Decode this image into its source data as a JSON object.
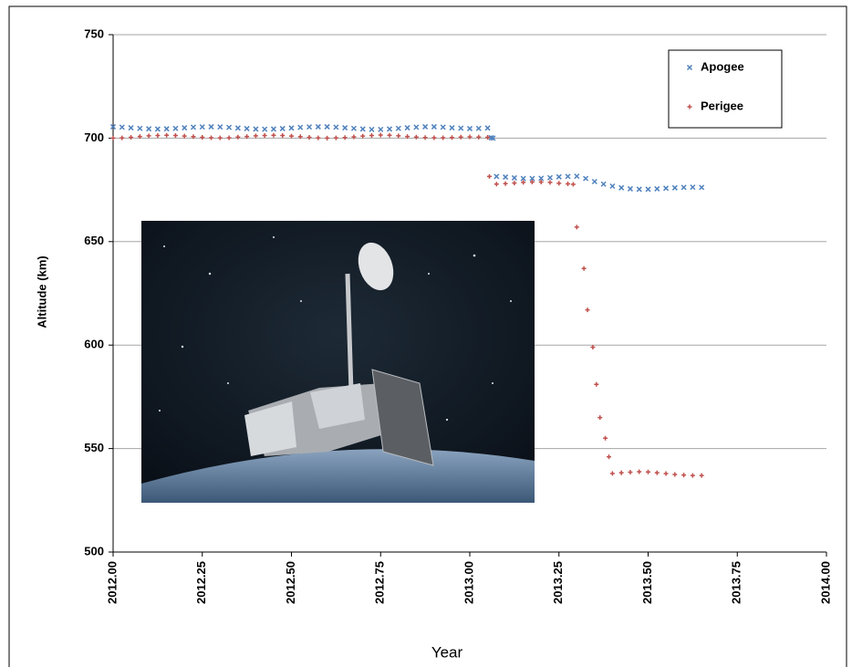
{
  "chart_data": {
    "type": "scatter",
    "x_label": "Year",
    "y_label": "Altitude  (km)",
    "xlim": [
      2012,
      2014
    ],
    "xticks": [
      {
        "value": 2012,
        "label": "2012.00"
      },
      {
        "value": 2012.25,
        "label": "2012.25"
      },
      {
        "value": 2012.5,
        "label": "2012.50"
      },
      {
        "value": 2012.75,
        "label": "2012.75"
      },
      {
        "value": 2013,
        "label": "2013.00"
      },
      {
        "value": 2013.25,
        "label": "2013.25"
      },
      {
        "value": 2013.5,
        "label": "2013.50"
      },
      {
        "value": 2013.75,
        "label": "2013.75"
      },
      {
        "value": 2014,
        "label": "2014.00"
      }
    ],
    "ylim": [
      500,
      750
    ],
    "yticks": [
      500,
      550,
      600,
      650,
      700,
      750
    ],
    "grid": true,
    "legend": "upper right",
    "series": [
      {
        "name": "Apogee",
        "color": "#4f81bd",
        "marker": "x",
        "x": [
          2012.0,
          2012.025,
          2012.05,
          2012.075,
          2012.1,
          2012.125,
          2012.15,
          2012.175,
          2012.2,
          2012.225,
          2012.25,
          2012.275,
          2012.3,
          2012.325,
          2012.35,
          2012.375,
          2012.4,
          2012.425,
          2012.45,
          2012.475,
          2012.5,
          2012.525,
          2012.55,
          2012.575,
          2012.6,
          2012.625,
          2012.65,
          2012.675,
          2012.7,
          2012.725,
          2012.75,
          2012.775,
          2012.8,
          2012.825,
          2012.85,
          2012.875,
          2012.9,
          2012.925,
          2012.95,
          2012.975,
          2013.0,
          2013.025,
          2013.05,
          2013.06,
          2013.065,
          2013.075,
          2013.1,
          2013.125,
          2013.15,
          2013.175,
          2013.2,
          2013.225,
          2013.25,
          2013.275,
          2013.3,
          2013.325,
          2013.35,
          2013.375,
          2013.4,
          2013.425,
          2013.45,
          2013.475,
          2013.5,
          2013.525,
          2013.55,
          2013.575,
          2013.6,
          2013.625,
          2013.65
        ],
        "values": [
          705.5,
          705.3,
          705.0,
          704.7,
          704.5,
          704.4,
          704.5,
          704.7,
          705.0,
          705.3,
          705.4,
          705.5,
          705.4,
          705.2,
          704.9,
          704.6,
          704.4,
          704.3,
          704.4,
          704.6,
          704.9,
          705.2,
          705.4,
          705.5,
          705.5,
          705.3,
          705.0,
          704.7,
          704.4,
          704.2,
          704.2,
          704.4,
          704.7,
          705.0,
          705.3,
          705.5,
          705.5,
          705.3,
          705.0,
          704.8,
          704.6,
          704.7,
          704.9,
          700.2,
          700.0,
          681.5,
          681.2,
          680.8,
          680.5,
          680.5,
          680.6,
          680.9,
          681.3,
          681.5,
          681.6,
          680.5,
          679.0,
          677.8,
          676.8,
          676.0,
          675.5,
          675.3,
          675.3,
          675.5,
          675.8,
          676.0,
          676.2,
          676.3,
          676.2
        ]
      },
      {
        "name": "Perigee",
        "color": "#c0504d",
        "marker": "+",
        "x": [
          2012.0,
          2012.025,
          2012.05,
          2012.075,
          2012.1,
          2012.125,
          2012.15,
          2012.175,
          2012.2,
          2012.225,
          2012.25,
          2012.275,
          2012.3,
          2012.325,
          2012.35,
          2012.375,
          2012.4,
          2012.425,
          2012.45,
          2012.475,
          2012.5,
          2012.525,
          2012.55,
          2012.575,
          2012.6,
          2012.625,
          2012.65,
          2012.675,
          2012.7,
          2012.725,
          2012.75,
          2012.775,
          2012.8,
          2012.825,
          2012.85,
          2012.875,
          2012.9,
          2012.925,
          2012.95,
          2012.975,
          2013.0,
          2013.025,
          2013.05,
          2013.055,
          2013.075,
          2013.1,
          2013.125,
          2013.15,
          2013.175,
          2013.2,
          2013.225,
          2013.25,
          2013.275,
          2013.29,
          2013.3,
          2013.32,
          2013.33,
          2013.345,
          2013.355,
          2013.365,
          2013.38,
          2013.39,
          2013.4,
          2013.425,
          2013.45,
          2013.475,
          2013.5,
          2013.525,
          2013.55,
          2013.575,
          2013.6,
          2013.625,
          2013.65
        ],
        "values": [
          700.0,
          700.1,
          700.4,
          700.8,
          701.1,
          701.3,
          701.4,
          701.3,
          701.0,
          700.7,
          700.4,
          700.2,
          700.1,
          700.2,
          700.5,
          700.8,
          701.1,
          701.3,
          701.4,
          701.3,
          701.0,
          700.7,
          700.4,
          700.1,
          700.0,
          700.1,
          700.3,
          700.6,
          701.0,
          701.3,
          701.5,
          701.4,
          701.1,
          700.8,
          700.5,
          700.3,
          700.2,
          700.2,
          700.3,
          700.5,
          700.6,
          700.5,
          700.4,
          681.5,
          677.8,
          678.0,
          678.3,
          678.6,
          678.8,
          678.8,
          678.6,
          678.2,
          677.9,
          677.7,
          657,
          637,
          617,
          599,
          581,
          565,
          555,
          546,
          538,
          538.3,
          538.6,
          538.8,
          538.7,
          538.3,
          537.9,
          537.5,
          537.2,
          537.0,
          537.0
        ]
      }
    ]
  }
}
